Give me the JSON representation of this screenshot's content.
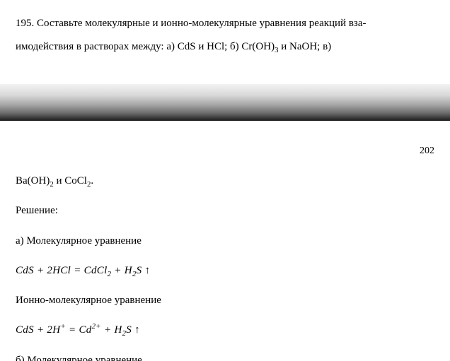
{
  "question": {
    "number": "195.",
    "line1": "Составьте молекулярные и ионно-молекулярные уравнения реакций вза-",
    "line2_prefix": "имодействия в растворах между: а) CdS и HCl; б) Cr(OH)",
    "cr_oh_sub": "3",
    "line2_mid": " и NaOH; в)"
  },
  "page_number": "202",
  "continuation": {
    "ba_prefix": "Ba(OH)",
    "ba_sub": "2",
    "mid": " и CoCl",
    "co_sub": "2",
    "suffix": "."
  },
  "labels": {
    "solution": "Решение:",
    "a_mol": "а) Молекулярное уравнение",
    "ionic": "Ионно-молекулярное уравнение",
    "b_mol": "б) Молекулярное уравнение"
  },
  "equations": {
    "a_mol": {
      "p1": "CdS",
      "plus1": " + 2",
      "p2": "HCl",
      "eq": " = ",
      "p3": "CdCl",
      "sub1": "2",
      "plus2": " + ",
      "p4": "H",
      "sub2": "2",
      "p5": "S",
      "arrow": " ↑"
    },
    "a_ion": {
      "p1": "CdS",
      "plus1": " + 2",
      "p2": "H",
      "sup1": "+",
      "eq": " = ",
      "p3": "Cd",
      "sup2": "2+",
      "plus2": " + ",
      "p4": "H",
      "sub1": "2",
      "p5": "S",
      "arrow": " ↑"
    }
  },
  "colors": {
    "text": "#000000",
    "background": "#ffffff"
  },
  "typography": {
    "base_font_pt": 11,
    "family": "Times New Roman"
  }
}
